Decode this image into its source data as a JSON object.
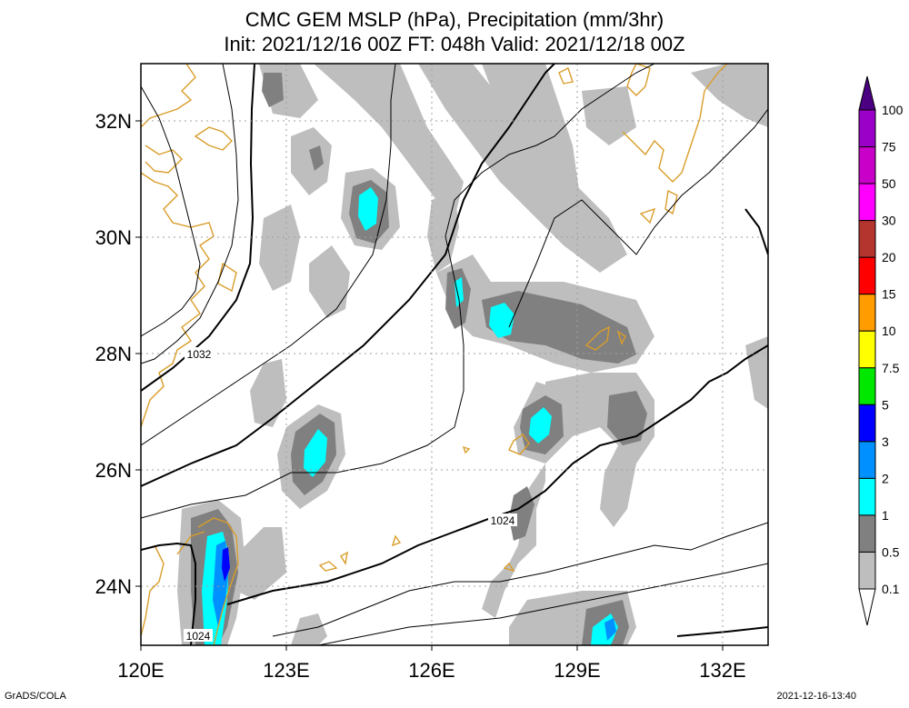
{
  "header": {
    "title_line1": "CMC GEM MSLP (hPa), Precipitation (mm/3hr)",
    "title_line2": "Init: 2021/12/16 00Z  FT: 048h  Valid: 2021/12/18 00Z"
  },
  "footer": {
    "left": "GrADS/COLA",
    "right": "2021-12-16-13:40"
  },
  "map": {
    "lon_labels": [
      "120E",
      "123E",
      "126E",
      "129E",
      "132E"
    ],
    "lat_labels": [
      "32N",
      "30N",
      "28N",
      "26N",
      "24N"
    ],
    "isobar_labels": [
      "1032",
      "1024",
      "1024"
    ]
  },
  "colorbar": {
    "levels": [
      "100",
      "75",
      "50",
      "30",
      "20",
      "15",
      "10",
      "7.5",
      "5",
      "3",
      "2",
      "1",
      "0.5",
      "0.1"
    ],
    "colors": [
      "#9b00c8",
      "#c800c8",
      "#ff00ff",
      "#b4352d",
      "#ff0000",
      "#ff9c00",
      "#ffff00",
      "#00e800",
      "#0000ff",
      "#0090ff",
      "#00ffff",
      "#808080",
      "#bebebe"
    ],
    "top_color": "#4b0082"
  },
  "colors": {
    "coast": "#d99d2a",
    "precip_light": "#bebebe",
    "precip_mid": "#808080",
    "precip_cyan": "#00ffff",
    "precip_blue": "#0090ff"
  }
}
